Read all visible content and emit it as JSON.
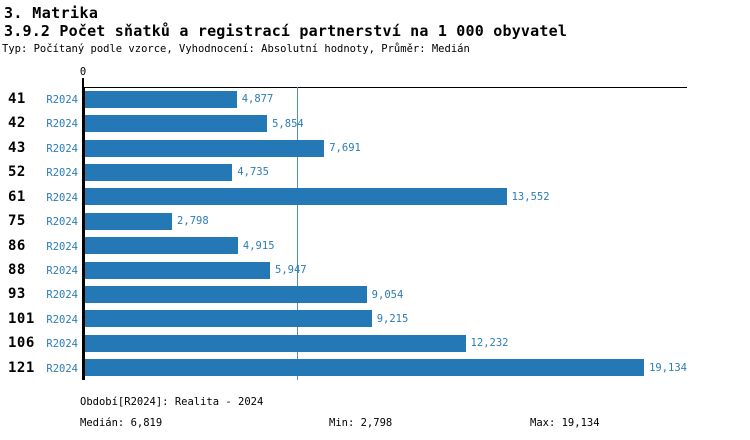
{
  "header": {
    "app_title": "3. Matrika",
    "chart_title": "3.9.2 Počet sňatků a registrací partnerství na 1 000 obyvatel",
    "meta": "Typ: Počítaný podle vzorce, Vyhodnocení: Absolutní hodnoty, Průměr: Medián"
  },
  "chart_data": {
    "type": "bar",
    "orientation": "horizontal",
    "title": "3.9.2 Počet sňatků a registrací partnerství na 1 000 obyvatel",
    "categories": [
      "41",
      "42",
      "43",
      "52",
      "61",
      "75",
      "86",
      "88",
      "93",
      "101",
      "106",
      "121"
    ],
    "series": [
      {
        "name": "R2024",
        "values": [
          4.877,
          5.854,
          7.691,
          4.735,
          13.552,
          2.798,
          4.915,
          5.947,
          9.054,
          9.215,
          12.232,
          19.134
        ],
        "value_labels": [
          "4,877",
          "5,854",
          "7,691",
          "4,735",
          "13,552",
          "2,798",
          "4,915",
          "5,947",
          "9,054",
          "9,215",
          "12,232",
          "19,134"
        ]
      }
    ],
    "xlabel": "",
    "ylabel": "",
    "xlim": [
      0,
      19.35
    ],
    "axis_origin_label": "0",
    "median_value": 6.819,
    "grid": false,
    "legend": "none",
    "bar_color": "#2478b5",
    "median_line_color": "#4a90c6",
    "label_color": "#2b7cb8"
  },
  "footer": {
    "period": "Období[R2024]: Realita - 2024",
    "median": "Medián: 6,819",
    "min": "Min: 2,798",
    "max": "Max: 19,134"
  }
}
